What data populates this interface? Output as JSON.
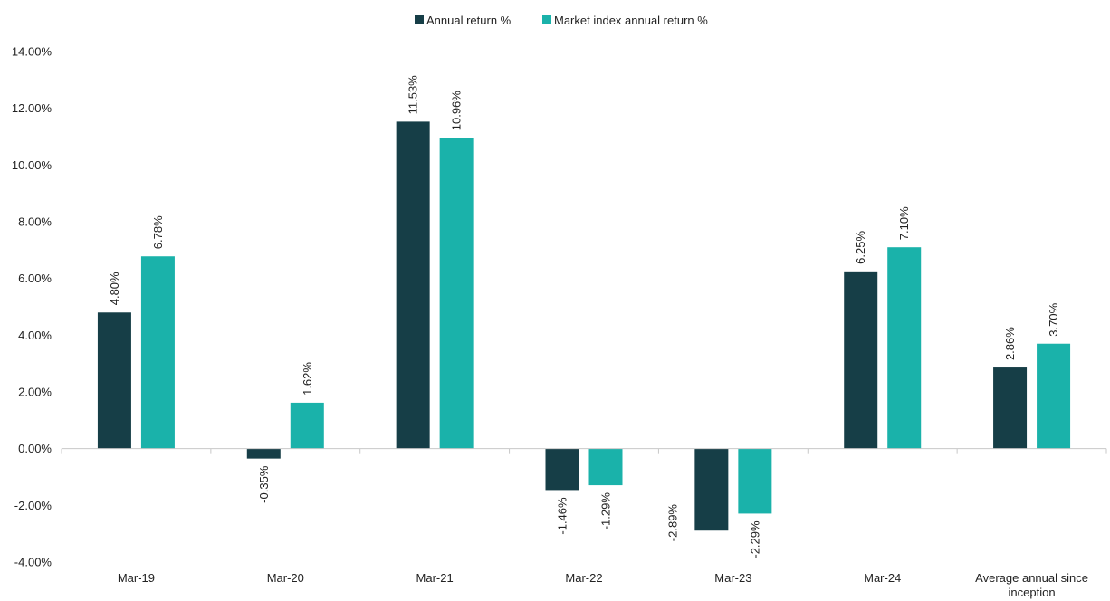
{
  "chart_data": {
    "type": "bar",
    "categories": [
      "Mar-19",
      "Mar-20",
      "Mar-21",
      "Mar-22",
      "Mar-23",
      "Mar-24",
      "Average annual since inception"
    ],
    "series": [
      {
        "name": "Annual return %",
        "color": "#163e47",
        "values": [
          4.8,
          -0.35,
          11.53,
          -1.46,
          -2.89,
          6.25,
          2.86
        ],
        "labels": [
          "4.80%",
          "-0.35%",
          "11.53%",
          "-1.46%",
          "-2.89%",
          "6.25%",
          "2.86%"
        ]
      },
      {
        "name": "Market index annual return %",
        "color": "#1ab2aa",
        "values": [
          6.78,
          1.62,
          10.96,
          -1.29,
          -2.29,
          7.1,
          3.7
        ],
        "labels": [
          "6.78%",
          "1.62%",
          "10.96%",
          "-1.29%",
          "-2.29%",
          "7.10%",
          "3.70%"
        ]
      }
    ],
    "y_ticks": [
      "-4.00%",
      "-2.00%",
      "0.00%",
      "2.00%",
      "4.00%",
      "6.00%",
      "8.00%",
      "10.00%",
      "12.00%",
      "14.00%"
    ],
    "ylim": [
      -4,
      14
    ],
    "legend_position": "top-center",
    "grid": false,
    "title": "",
    "xlabel": "",
    "ylabel": ""
  }
}
